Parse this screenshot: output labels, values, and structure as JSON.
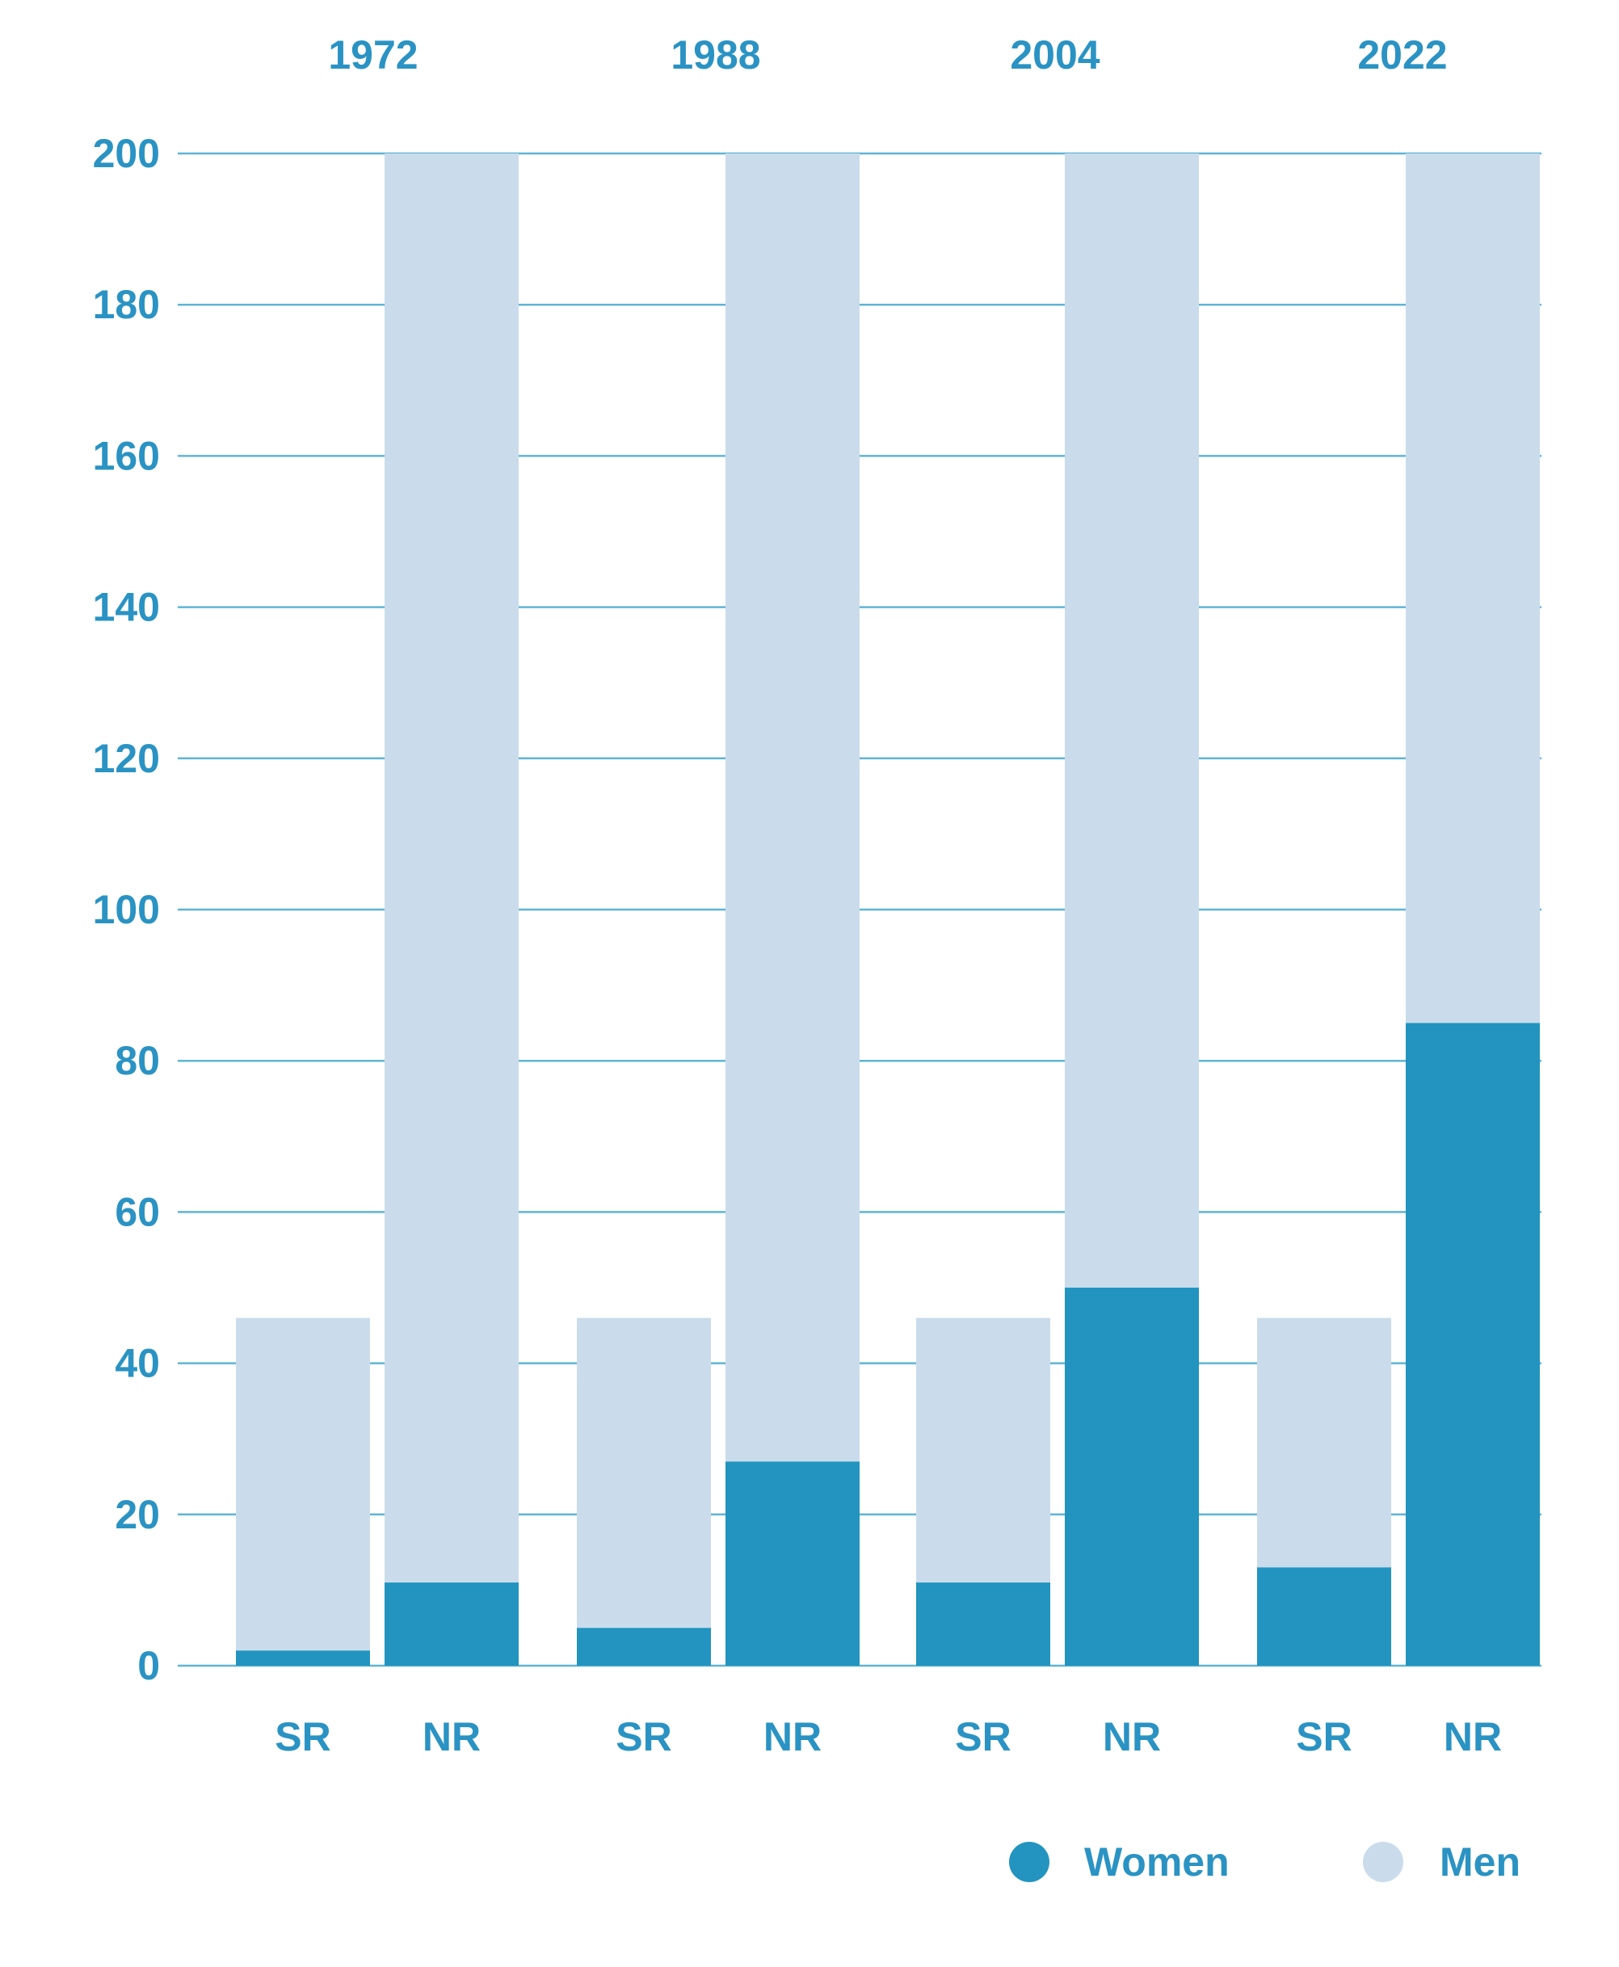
{
  "colors": {
    "women": "#2294bf",
    "men": "#cadceb",
    "text": "#2a93c3",
    "grid": "#5fb4d6"
  },
  "chart_data": {
    "type": "bar",
    "stacked": true,
    "title": "",
    "xlabel": "",
    "ylabel": "",
    "ylim": [
      0,
      200
    ],
    "yticks": [
      0,
      20,
      40,
      60,
      80,
      100,
      120,
      140,
      160,
      180,
      200
    ],
    "grid": true,
    "legend_position": "bottom-right",
    "groups": [
      {
        "label": "1972",
        "bars": [
          {
            "label": "SR",
            "women": 2,
            "total": 46
          },
          {
            "label": "NR",
            "women": 11,
            "total": 200
          }
        ]
      },
      {
        "label": "1988",
        "bars": [
          {
            "label": "SR",
            "women": 5,
            "total": 46
          },
          {
            "label": "NR",
            "women": 27,
            "total": 200
          }
        ]
      },
      {
        "label": "2004",
        "bars": [
          {
            "label": "SR",
            "women": 11,
            "total": 46
          },
          {
            "label": "NR",
            "women": 50,
            "total": 200
          }
        ]
      },
      {
        "label": "2022",
        "bars": [
          {
            "label": "SR",
            "women": 13,
            "total": 46
          },
          {
            "label": "NR",
            "women": 85,
            "total": 200
          }
        ]
      }
    ],
    "series": [
      {
        "name": "Women",
        "values": [
          2,
          11,
          5,
          27,
          11,
          50,
          13,
          85
        ]
      },
      {
        "name": "Men",
        "values": [
          44,
          189,
          41,
          173,
          35,
          150,
          33,
          115
        ]
      }
    ]
  }
}
